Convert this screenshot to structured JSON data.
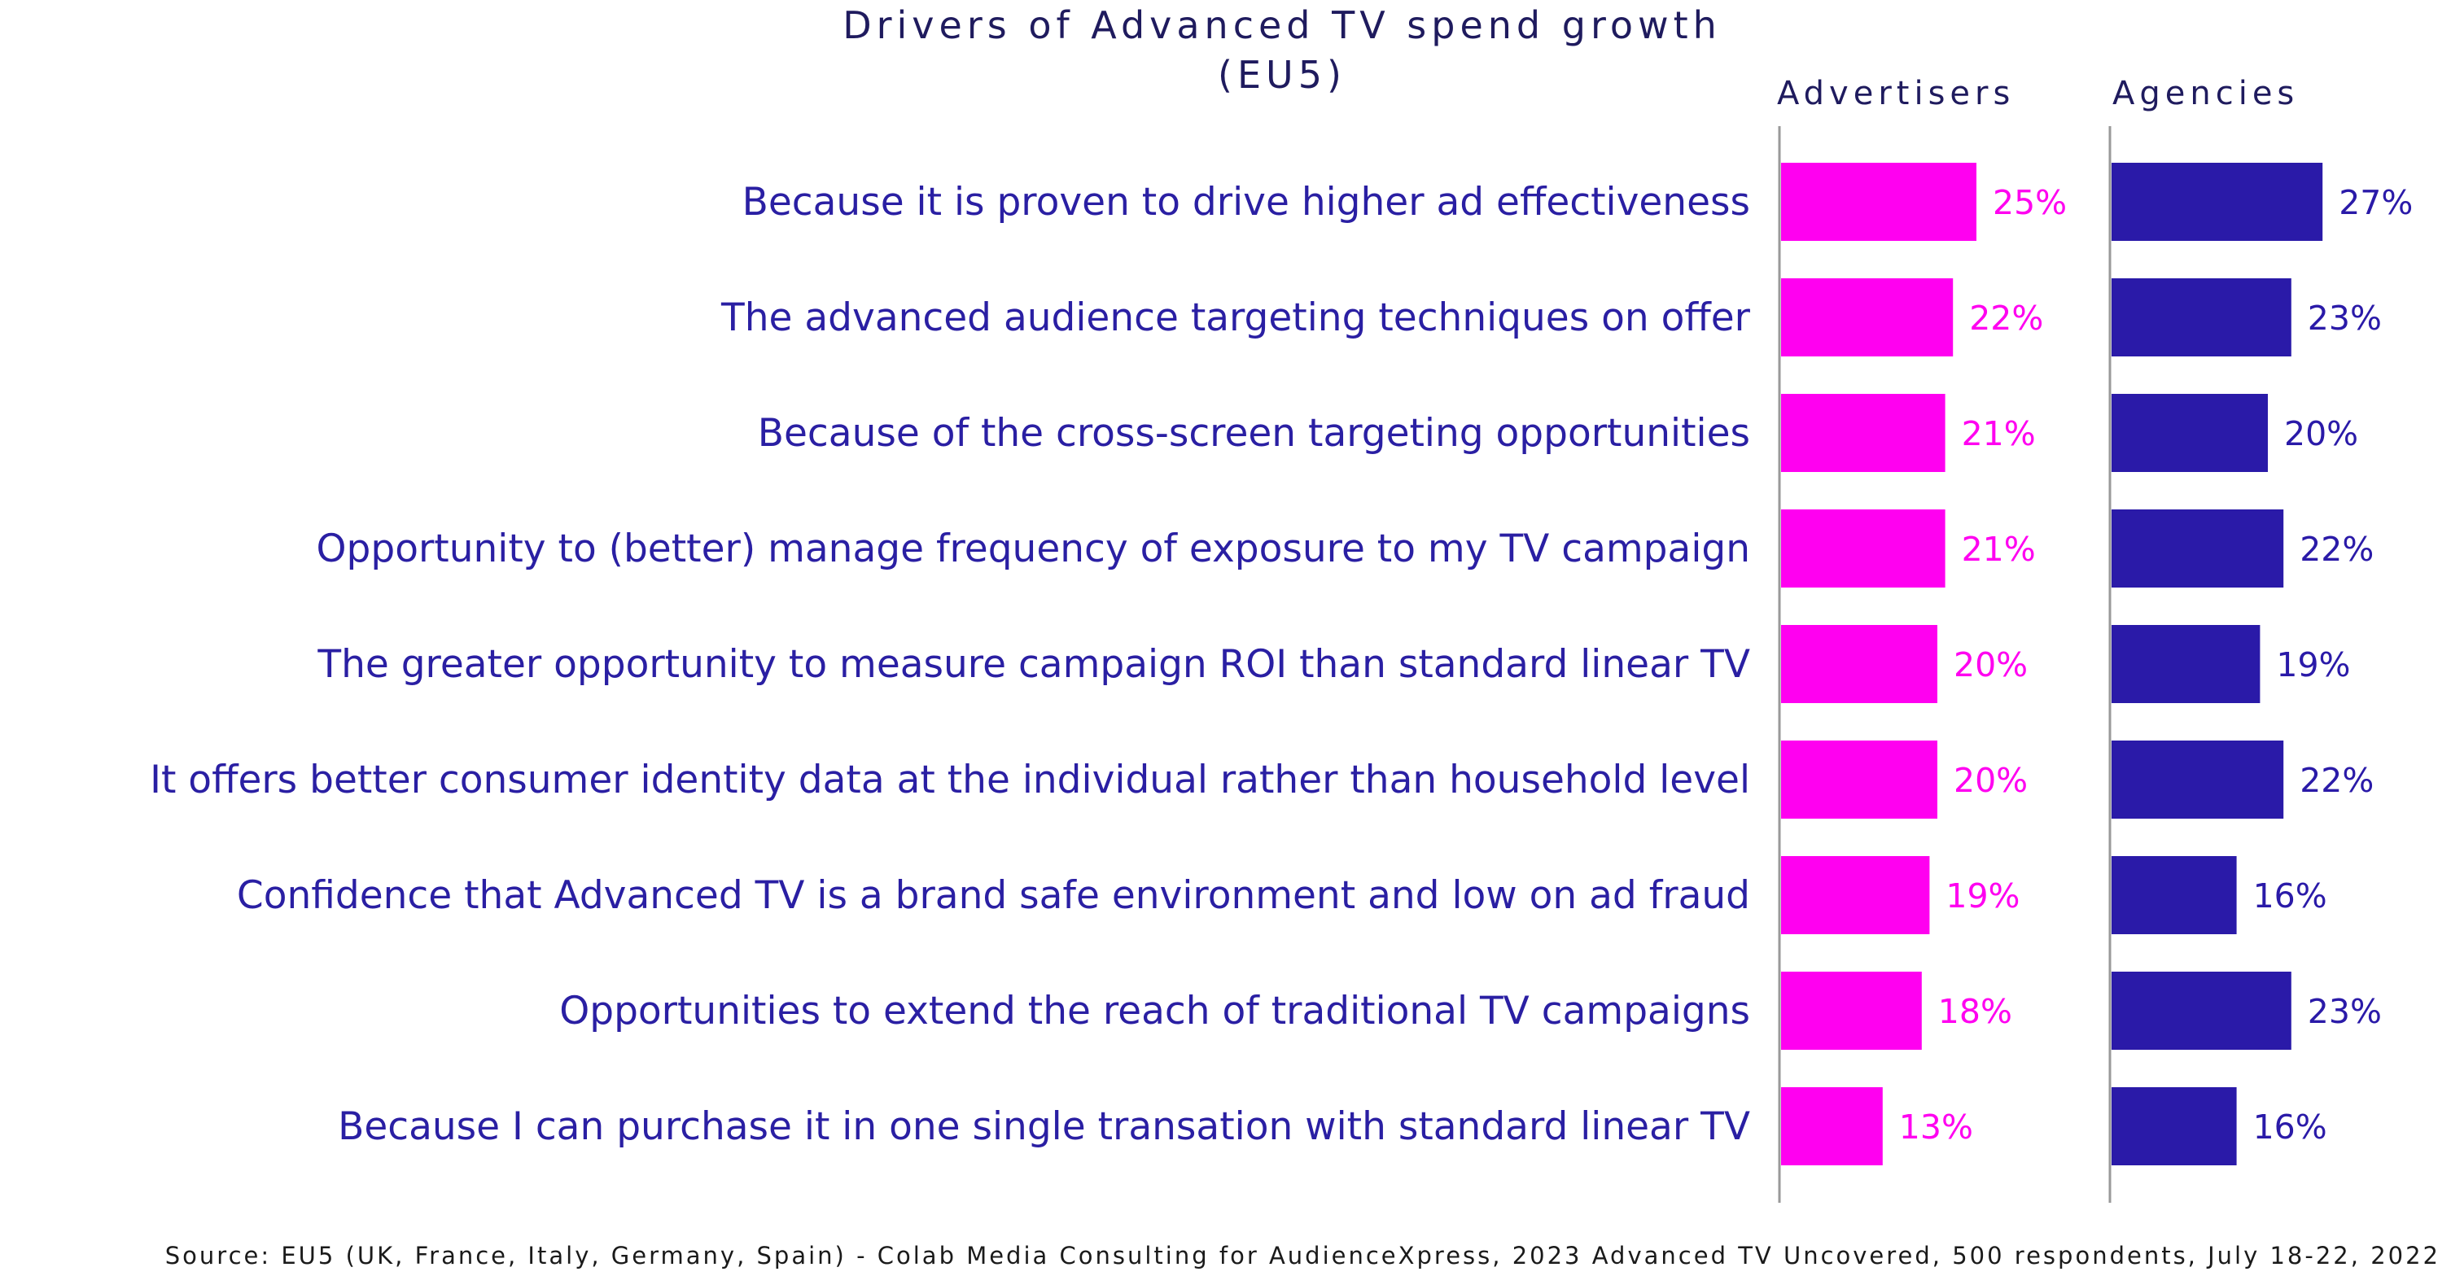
{
  "chart_data": {
    "type": "bar",
    "orientation": "horizontal",
    "title": "Drivers of Advanced TV spend growth",
    "subtitle": "(EU5)",
    "categories": [
      "Because it is proven to drive higher ad effectiveness",
      "The advanced audience targeting techniques on offer",
      "Because of the cross-screen targeting opportunities",
      "Opportunity to (better) manage frequency of exposure to my TV campaign",
      "The greater opportunity to measure campaign ROI than standard linear TV",
      "It offers better consumer identity data at the individual rather than household level",
      "Confidence that Advanced TV is a brand safe environment and low on ad fraud",
      "Opportunities to extend the reach of traditional TV campaigns",
      "Because I can purchase it in one single transation with standard linear TV"
    ],
    "series": [
      {
        "name": "Advertisers",
        "color": "#ff00f0",
        "values": [
          25,
          22,
          21,
          21,
          20,
          20,
          19,
          18,
          13
        ],
        "labels": [
          "25%",
          "22%",
          "21%",
          "21%",
          "20%",
          "20%",
          "19%",
          "18%",
          "13%"
        ]
      },
      {
        "name": "Agencies",
        "color": "#2a1aa8",
        "values": [
          27,
          23,
          20,
          22,
          19,
          22,
          16,
          23,
          16
        ],
        "labels": [
          "27%",
          "23%",
          "20%",
          "22%",
          "19%",
          "22%",
          "16%",
          "23%",
          "16%"
        ]
      }
    ],
    "unit": "%",
    "grid": false,
    "legend": "column headers at top"
  },
  "source": "Source: EU5 (UK, France, Italy, Germany, Spain) -  Colab Media Consulting for AudienceXpress, 2023 Advanced TV Uncovered, 500 respondents, July 18-22, 2022"
}
